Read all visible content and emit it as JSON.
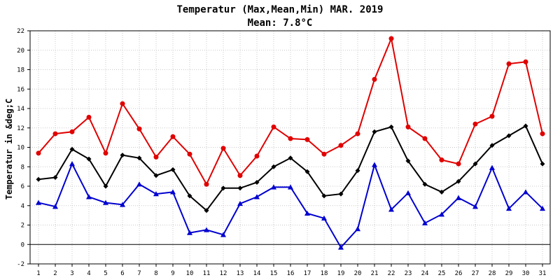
{
  "chart_data": {
    "type": "line",
    "title": "Temperatur (Max,Mean,Min) MAR. 2019",
    "subtitle": "Mean: 7.8°C",
    "ylabel": "Temperatur in &deg;C",
    "xlabel": "",
    "ylim": [
      -2,
      22
    ],
    "yticks": [
      -2,
      0,
      2,
      4,
      6,
      8,
      10,
      12,
      14,
      16,
      18,
      20,
      22
    ],
    "grid": true,
    "x": [
      1,
      2,
      3,
      4,
      5,
      6,
      7,
      8,
      9,
      10,
      11,
      12,
      13,
      14,
      15,
      16,
      17,
      18,
      19,
      20,
      21,
      22,
      23,
      24,
      25,
      26,
      27,
      28,
      29,
      30,
      31
    ],
    "series": [
      {
        "color": "#e00000",
        "marker": "circle",
        "values": [
          9.4,
          11.4,
          11.6,
          13.1,
          9.4,
          14.5,
          11.9,
          9.0,
          11.1,
          9.3,
          6.2,
          9.9,
          7.1,
          9.1,
          12.1,
          10.9,
          10.8,
          9.3,
          10.2,
          11.4,
          17.0,
          21.2,
          12.1,
          10.9,
          8.7,
          8.3,
          12.4,
          13.2,
          18.6,
          18.8,
          11.4
        ]
      },
      {
        "color": "#000000",
        "marker": "diamond",
        "values": [
          6.7,
          6.9,
          9.8,
          8.8,
          6.0,
          9.2,
          8.9,
          7.1,
          7.7,
          5.0,
          3.5,
          5.8,
          5.8,
          6.4,
          8.0,
          8.9,
          7.5,
          5.0,
          5.2,
          7.6,
          11.6,
          12.1,
          8.6,
          6.2,
          5.4,
          6.5,
          8.3,
          10.2,
          11.2,
          12.2,
          8.3
        ]
      },
      {
        "color": "#0000d0",
        "marker": "triangle",
        "values": [
          4.3,
          3.9,
          8.3,
          4.9,
          4.3,
          4.1,
          6.2,
          5.2,
          5.4,
          1.2,
          1.5,
          1.0,
          4.2,
          4.9,
          5.9,
          5.9,
          3.2,
          2.7,
          -0.3,
          1.6,
          8.2,
          3.6,
          5.3,
          2.2,
          3.1,
          4.8,
          3.9,
          7.9,
          3.7,
          5.4,
          3.7
        ]
      }
    ]
  }
}
